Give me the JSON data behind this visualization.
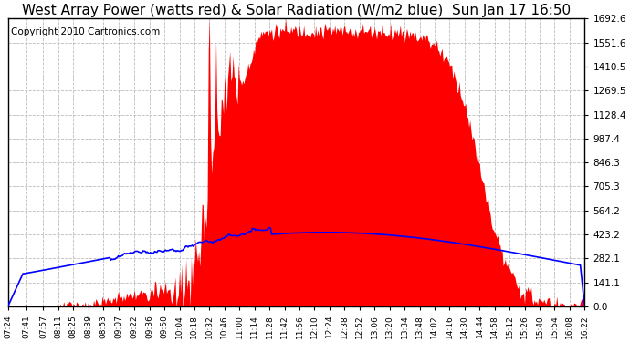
{
  "title": "West Array Power (watts red) & Solar Radiation (W/m2 blue)  Sun Jan 17 16:50",
  "copyright": "Copyright 2010 Cartronics.com",
  "y_ticks": [
    0.0,
    141.1,
    282.1,
    423.2,
    564.2,
    705.3,
    846.3,
    987.4,
    1128.4,
    1269.5,
    1410.5,
    1551.6,
    1692.6
  ],
  "x_tick_labels": [
    "07:24",
    "07:41",
    "07:57",
    "08:11",
    "08:25",
    "08:39",
    "08:53",
    "09:07",
    "09:22",
    "09:36",
    "09:50",
    "10:04",
    "10:18",
    "10:32",
    "10:46",
    "11:00",
    "11:14",
    "11:28",
    "11:42",
    "11:56",
    "12:10",
    "12:24",
    "12:38",
    "12:52",
    "13:06",
    "13:20",
    "13:34",
    "13:48",
    "14:02",
    "14:16",
    "14:30",
    "14:44",
    "14:58",
    "15:12",
    "15:26",
    "15:40",
    "15:54",
    "16:08",
    "16:22"
  ],
  "ymax": 1692.6,
  "ymin": 0.0,
  "bg_color": "#ffffff",
  "plot_bg_color": "#ffffff",
  "grid_color": "#bbbbbb",
  "fill_color": "#ff0000",
  "line_color": "#0000ff",
  "border_color": "#000000",
  "title_fontsize": 11,
  "copyright_fontsize": 7.5
}
